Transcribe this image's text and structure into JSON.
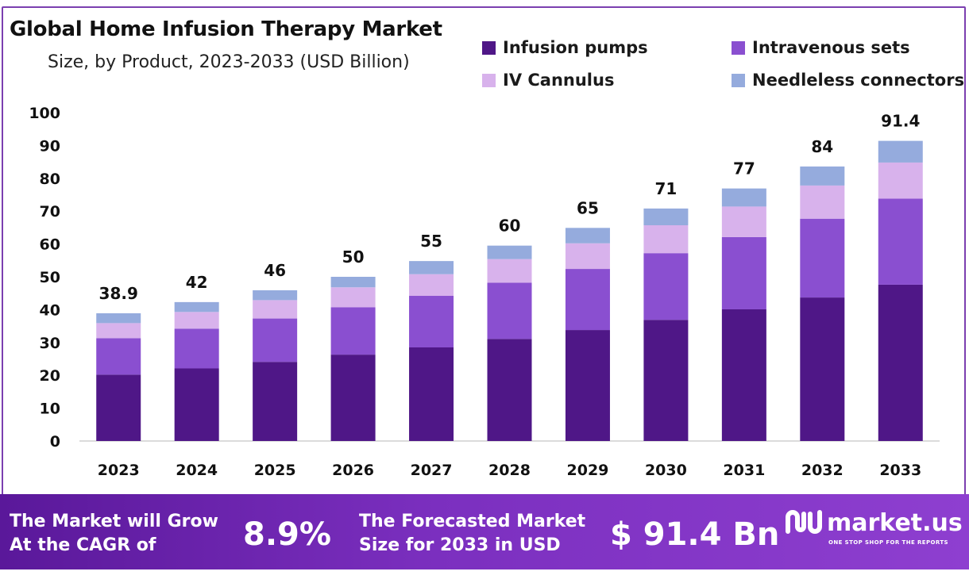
{
  "header": {
    "title": "Global Home Infusion Therapy Market",
    "subtitle": "Size, by Product, 2023-2033 (USD Billion)"
  },
  "legend": [
    {
      "label": "Infusion pumps",
      "color": "#4f1787"
    },
    {
      "label": "Intravenous sets",
      "color": "#8a4fd0"
    },
    {
      "label": "IV Cannulus",
      "color": "#d8b2ec"
    },
    {
      "label": "Needleless connectors",
      "color": "#95abdd"
    }
  ],
  "chart_data": {
    "type": "bar",
    "stacked": true,
    "categories": [
      "2023",
      "2024",
      "2025",
      "2026",
      "2027",
      "2028",
      "2029",
      "2030",
      "2031",
      "2032",
      "2033"
    ],
    "series": [
      {
        "name": "Infusion pumps",
        "color": "#4f1787",
        "values": [
          20.2,
          22.1,
          24.1,
          26.3,
          28.5,
          31.1,
          33.8,
          36.9,
          40.1,
          43.7,
          47.6
        ]
      },
      {
        "name": "Intravenous sets",
        "color": "#8a4fd0",
        "values": [
          11.1,
          12.1,
          13.2,
          14.4,
          15.7,
          17.1,
          18.6,
          20.3,
          22.0,
          24.0,
          26.2
        ]
      },
      {
        "name": "IV Cannulus",
        "color": "#d8b2ec",
        "values": [
          4.6,
          5.1,
          5.6,
          6.1,
          6.6,
          7.2,
          7.8,
          8.5,
          9.3,
          10.1,
          11.0
        ]
      },
      {
        "name": "Needleless connectors",
        "color": "#95abdd",
        "values": [
          3.0,
          3.0,
          3.0,
          3.2,
          4.0,
          4.1,
          4.7,
          5.1,
          5.5,
          5.8,
          6.6
        ]
      }
    ],
    "totals": [
      "38.9",
      "42",
      "46",
      "50",
      "55",
      "60",
      "65",
      "71",
      "77",
      "84",
      "91.4"
    ],
    "ylim": [
      0,
      100
    ],
    "yticks": [
      "0",
      "10",
      "20",
      "30",
      "40",
      "50",
      "60",
      "70",
      "80",
      "90",
      "100"
    ],
    "grid": false,
    "legend_position": "top-right"
  },
  "footer": {
    "cagr_line1": "The Market will Grow",
    "cagr_line2": "At the CAGR of",
    "cagr_value": "8.9%",
    "forecast_line1": "The Forecasted Market",
    "forecast_line2": "Size for 2033 in USD",
    "forecast_value": "$ 91.4 Bn",
    "logo_name": "market.us",
    "logo_tagline": "ONE STOP SHOP FOR THE REPORTS",
    "logo_icon": "market-us-logo-icon"
  }
}
